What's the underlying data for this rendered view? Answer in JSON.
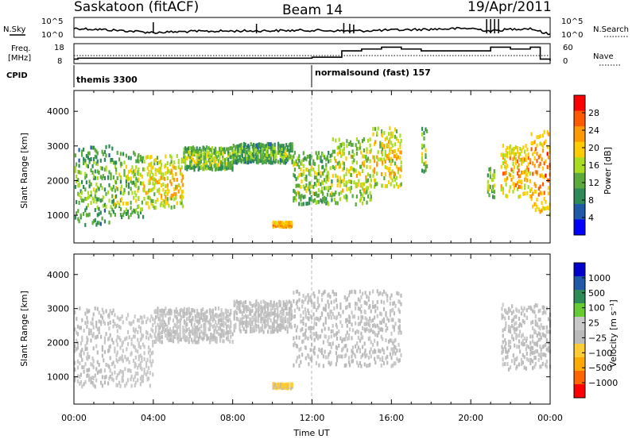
{
  "header": {
    "station": "Saskatoon (fitACF)",
    "beam": "Beam 14",
    "date": "19/Apr/2011"
  },
  "noise_panel": {
    "left_label": "N.Sky",
    "right_label": "N.Search",
    "left_ticks": [
      "10^5",
      "10^0"
    ],
    "right_ticks": [
      "10^5",
      "10^0"
    ]
  },
  "freq_panel": {
    "left_label_top": "Freq.",
    "left_label_bottom": "[MHz]",
    "right_label": "Nave",
    "left_ticks": [
      "18",
      "8"
    ],
    "right_ticks": [
      "60",
      "0"
    ]
  },
  "cpid_panel": {
    "label": "CPID",
    "segments": [
      {
        "name": "themis 3300",
        "start_h": 0,
        "end_h": 12
      },
      {
        "name": "normalsound (fast) 157",
        "start_h": 12,
        "end_h": 24
      }
    ]
  },
  "colors": {
    "power_scale": [
      "#0000ff",
      "#1e5aa8",
      "#2e8b57",
      "#5aaa3c",
      "#aadd22",
      "#ffcc00",
      "#ff9900",
      "#ff5a00",
      "#ff0000"
    ],
    "velocity_scale": [
      "#ff0000",
      "#ff6600",
      "#ffaa00",
      "#ffcc33",
      "#bbbbbb",
      "#c8c8c8",
      "#66cc33",
      "#2e8b57",
      "#1e5aa8",
      "#0000cc"
    ]
  },
  "chart_data": [
    {
      "type": "line",
      "name": "noise",
      "x": [
        0,
        2,
        4,
        6,
        8,
        10,
        12,
        14,
        16,
        18,
        20,
        21,
        22,
        23,
        24
      ],
      "series": [
        {
          "values": [
            45,
            35,
            22,
            28,
            30,
            32,
            34,
            30,
            35,
            40,
            45,
            30,
            40,
            45,
            10
          ]
        }
      ],
      "ylim": [
        0,
        100
      ]
    },
    {
      "type": "line",
      "name": "frequency",
      "x": [
        0,
        0.2,
        12,
        13.5,
        14.5,
        15.5,
        16.5,
        17.5,
        20,
        21,
        22,
        23,
        23.5,
        24
      ],
      "series": [
        {
          "values": [
            10,
            10.5,
            11,
            14.5,
            15.5,
            16.5,
            15.5,
            14.5,
            14.5,
            16.5,
            15.5,
            16.5,
            10,
            9
          ]
        }
      ],
      "ylim": [
        8,
        18
      ],
      "yticks": [
        18,
        8
      ]
    },
    {
      "type": "heatmap",
      "name": "power",
      "xlabel": "",
      "ylabel": "Slant Range [km]",
      "xlim": [
        0,
        24
      ],
      "ylim": [
        200,
        4600
      ],
      "yticks": [
        1000,
        2000,
        3000,
        4000
      ],
      "colorbar": {
        "label": "Power [dB]",
        "ticks": [
          "28",
          "24",
          "20",
          "16",
          "12",
          "8",
          "4"
        ],
        "range": [
          0,
          30
        ]
      },
      "echo_bands": [
        {
          "t0": 0.0,
          "t1": 2.0,
          "lo": 700,
          "hi": 3000,
          "val": 12
        },
        {
          "t0": 2.0,
          "t1": 3.5,
          "lo": 900,
          "hi": 2800,
          "val": 14
        },
        {
          "t0": 3.5,
          "t1": 5.5,
          "lo": 1200,
          "hi": 2700,
          "val": 18
        },
        {
          "t0": 5.5,
          "t1": 8.0,
          "lo": 2300,
          "hi": 2950,
          "val": 14
        },
        {
          "t0": 8.0,
          "t1": 11.0,
          "lo": 2500,
          "hi": 3050,
          "val": 12
        },
        {
          "t0": 11.0,
          "t1": 13.0,
          "lo": 1300,
          "hi": 2800,
          "val": 14
        },
        {
          "t0": 13.0,
          "t1": 15.0,
          "lo": 1300,
          "hi": 3200,
          "val": 16
        },
        {
          "t0": 15.0,
          "t1": 16.5,
          "lo": 1800,
          "hi": 3500,
          "val": 18
        },
        {
          "t0": 17.5,
          "t1": 17.8,
          "lo": 2200,
          "hi": 3500,
          "val": 14
        },
        {
          "t0": 20.8,
          "t1": 21.2,
          "lo": 1500,
          "hi": 2500,
          "val": 14
        },
        {
          "t0": 21.5,
          "t1": 23.0,
          "lo": 1500,
          "hi": 3000,
          "val": 20
        },
        {
          "t0": 23.0,
          "t1": 24.0,
          "lo": 1000,
          "hi": 3400,
          "val": 22
        },
        {
          "t0": 10.0,
          "t1": 11.0,
          "lo": 650,
          "hi": 780,
          "val": 22
        }
      ]
    },
    {
      "type": "heatmap",
      "name": "velocity",
      "xlabel": "Time UT",
      "ylabel": "Slant Range [km]",
      "xlim": [
        0,
        24
      ],
      "ylim": [
        200,
        4600
      ],
      "xticks": [
        "00:00",
        "04:00",
        "08:00",
        "12:00",
        "16:00",
        "20:00",
        "00:00"
      ],
      "yticks": [
        1000,
        2000,
        3000,
        4000
      ],
      "colorbar": {
        "label": "Velocity [m s⁻¹]",
        "ticks": [
          "1000",
          "500",
          "100",
          "25",
          "−25",
          "−100",
          "−500",
          "−1000"
        ],
        "range": [
          -1200,
          1200
        ]
      },
      "echo_bands": [
        {
          "t0": 0.0,
          "t1": 2.0,
          "lo": 700,
          "hi": 3000,
          "val": -5
        },
        {
          "t0": 2.0,
          "t1": 4.0,
          "lo": 700,
          "hi": 2800,
          "val": 80
        },
        {
          "t0": 4.0,
          "t1": 8.0,
          "lo": 2000,
          "hi": 3000,
          "val": 5
        },
        {
          "t0": 8.0,
          "t1": 11.0,
          "lo": 2300,
          "hi": 3200,
          "val": 5
        },
        {
          "t0": 11.0,
          "t1": 16.5,
          "lo": 1300,
          "hi": 3500,
          "val": -5
        },
        {
          "t0": 10.0,
          "t1": 11.0,
          "lo": 650,
          "hi": 780,
          "val": -250
        },
        {
          "t0": 21.5,
          "t1": 24.0,
          "lo": 1200,
          "hi": 3100,
          "val": 0
        }
      ]
    }
  ]
}
